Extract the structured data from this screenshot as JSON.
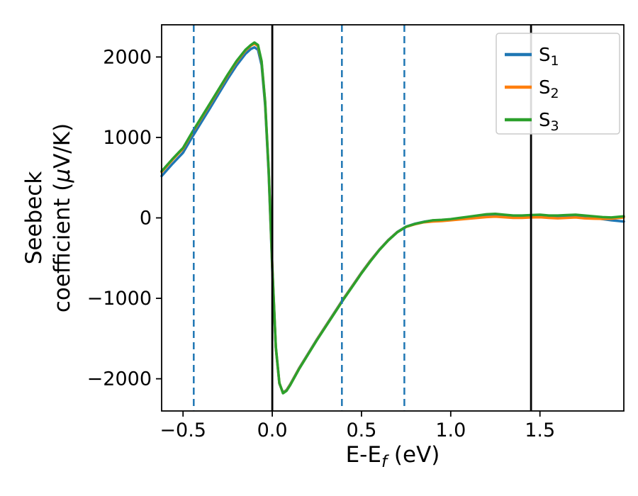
{
  "chart_data": {
    "type": "line",
    "title": "",
    "xlabel": {
      "pre": "E-E",
      "sub": "f",
      "post": " (eV)"
    },
    "ylabel": {
      "line1": "Seebeck",
      "line2_pre": "coefficient  (",
      "line2_mu": "μ",
      "line2_post": "V/K)"
    },
    "xlim": [
      -0.62,
      1.97
    ],
    "ylim": [
      -2400,
      2400
    ],
    "grid": false,
    "legend_position": "upper right",
    "x_ticks": {
      "values": [
        -0.5,
        0.0,
        0.5,
        1.0,
        1.5
      ],
      "labels": [
        "−0.5",
        "0.0",
        "0.5",
        "1.0",
        "1.5"
      ]
    },
    "y_ticks": {
      "values": [
        -2000,
        -1000,
        0,
        1000,
        2000
      ],
      "labels": [
        "−2000",
        "−1000",
        "0",
        "1000",
        "2000"
      ]
    },
    "x": [
      -0.62,
      -0.56,
      -0.5,
      -0.45,
      -0.4,
      -0.35,
      -0.3,
      -0.25,
      -0.2,
      -0.15,
      -0.12,
      -0.1,
      -0.08,
      -0.06,
      -0.04,
      -0.02,
      0,
      0.02,
      0.04,
      0.06,
      0.08,
      0.1,
      0.15,
      0.2,
      0.25,
      0.3,
      0.35,
      0.4,
      0.45,
      0.5,
      0.55,
      0.6,
      0.65,
      0.7,
      0.75,
      0.8,
      0.85,
      0.9,
      0.95,
      1.0,
      1.05,
      1.1,
      1.15,
      1.2,
      1.25,
      1.3,
      1.35,
      1.4,
      1.45,
      1.5,
      1.55,
      1.6,
      1.65,
      1.7,
      1.75,
      1.8,
      1.85,
      1.9,
      1.97
    ],
    "series": [
      {
        "name": "S1",
        "label_main": "S",
        "label_sub": "1",
        "color": "#1f77b4",
        "values": [
          520,
          670,
          810,
          1000,
          1180,
          1360,
          1545,
          1725,
          1895,
          2040,
          2100,
          2120,
          2090,
          1900,
          1400,
          550,
          -650,
          -1620,
          -2060,
          -2170,
          -2140,
          -2070,
          -1870,
          -1690,
          -1510,
          -1340,
          -1170,
          -1000,
          -840,
          -680,
          -530,
          -395,
          -275,
          -175,
          -108,
          -72,
          -48,
          -32,
          -28,
          -20,
          -8,
          5,
          18,
          30,
          35,
          28,
          20,
          18,
          22,
          25,
          18,
          15,
          18,
          20,
          12,
          0,
          -15,
          -30,
          -45
        ]
      },
      {
        "name": "S2",
        "label_main": "S",
        "label_sub": "2",
        "color": "#ff7f0e",
        "values": [
          570,
          720,
          860,
          1050,
          1230,
          1410,
          1590,
          1770,
          1940,
          2080,
          2140,
          2165,
          2135,
          1940,
          1440,
          590,
          -610,
          -1610,
          -2055,
          -2175,
          -2145,
          -2075,
          -1875,
          -1695,
          -1515,
          -1345,
          -1175,
          -1005,
          -845,
          -685,
          -535,
          -398,
          -278,
          -178,
          -112,
          -78,
          -55,
          -45,
          -40,
          -30,
          -20,
          -10,
          0,
          10,
          15,
          8,
          0,
          0,
          5,
          8,
          0,
          -5,
          0,
          5,
          -5,
          -10,
          -12,
          -10,
          5
        ]
      },
      {
        "name": "S3",
        "label_main": "S",
        "label_sub": "3",
        "color": "#2ca02c",
        "values": [
          580,
          730,
          870,
          1060,
          1240,
          1420,
          1600,
          1780,
          1950,
          2090,
          2150,
          2180,
          2150,
          1950,
          1450,
          600,
          -600,
          -1600,
          -2050,
          -2180,
          -2150,
          -2080,
          -1880,
          -1700,
          -1520,
          -1350,
          -1180,
          -1010,
          -850,
          -690,
          -540,
          -400,
          -280,
          -180,
          -110,
          -75,
          -50,
          -30,
          -25,
          -15,
          0,
          15,
          30,
          45,
          50,
          40,
          30,
          30,
          35,
          40,
          30,
          30,
          35,
          40,
          30,
          20,
          10,
          5,
          20
        ]
      }
    ],
    "vlines": [
      {
        "x": -0.44,
        "color": "#1f77b4",
        "style": "dashed"
      },
      {
        "x": 0.39,
        "color": "#1f77b4",
        "style": "dashed"
      },
      {
        "x": 0.74,
        "color": "#1f77b4",
        "style": "dashed"
      },
      {
        "x": 0.0,
        "color": "#000000",
        "style": "solid"
      },
      {
        "x": 1.45,
        "color": "#000000",
        "style": "solid"
      }
    ]
  },
  "colors": {
    "background": "#ffffff",
    "axis": "#000000",
    "legend_border": "#cccccc",
    "series_blue": "#1f77b4",
    "series_orange": "#ff7f0e",
    "series_green": "#2ca02c"
  }
}
